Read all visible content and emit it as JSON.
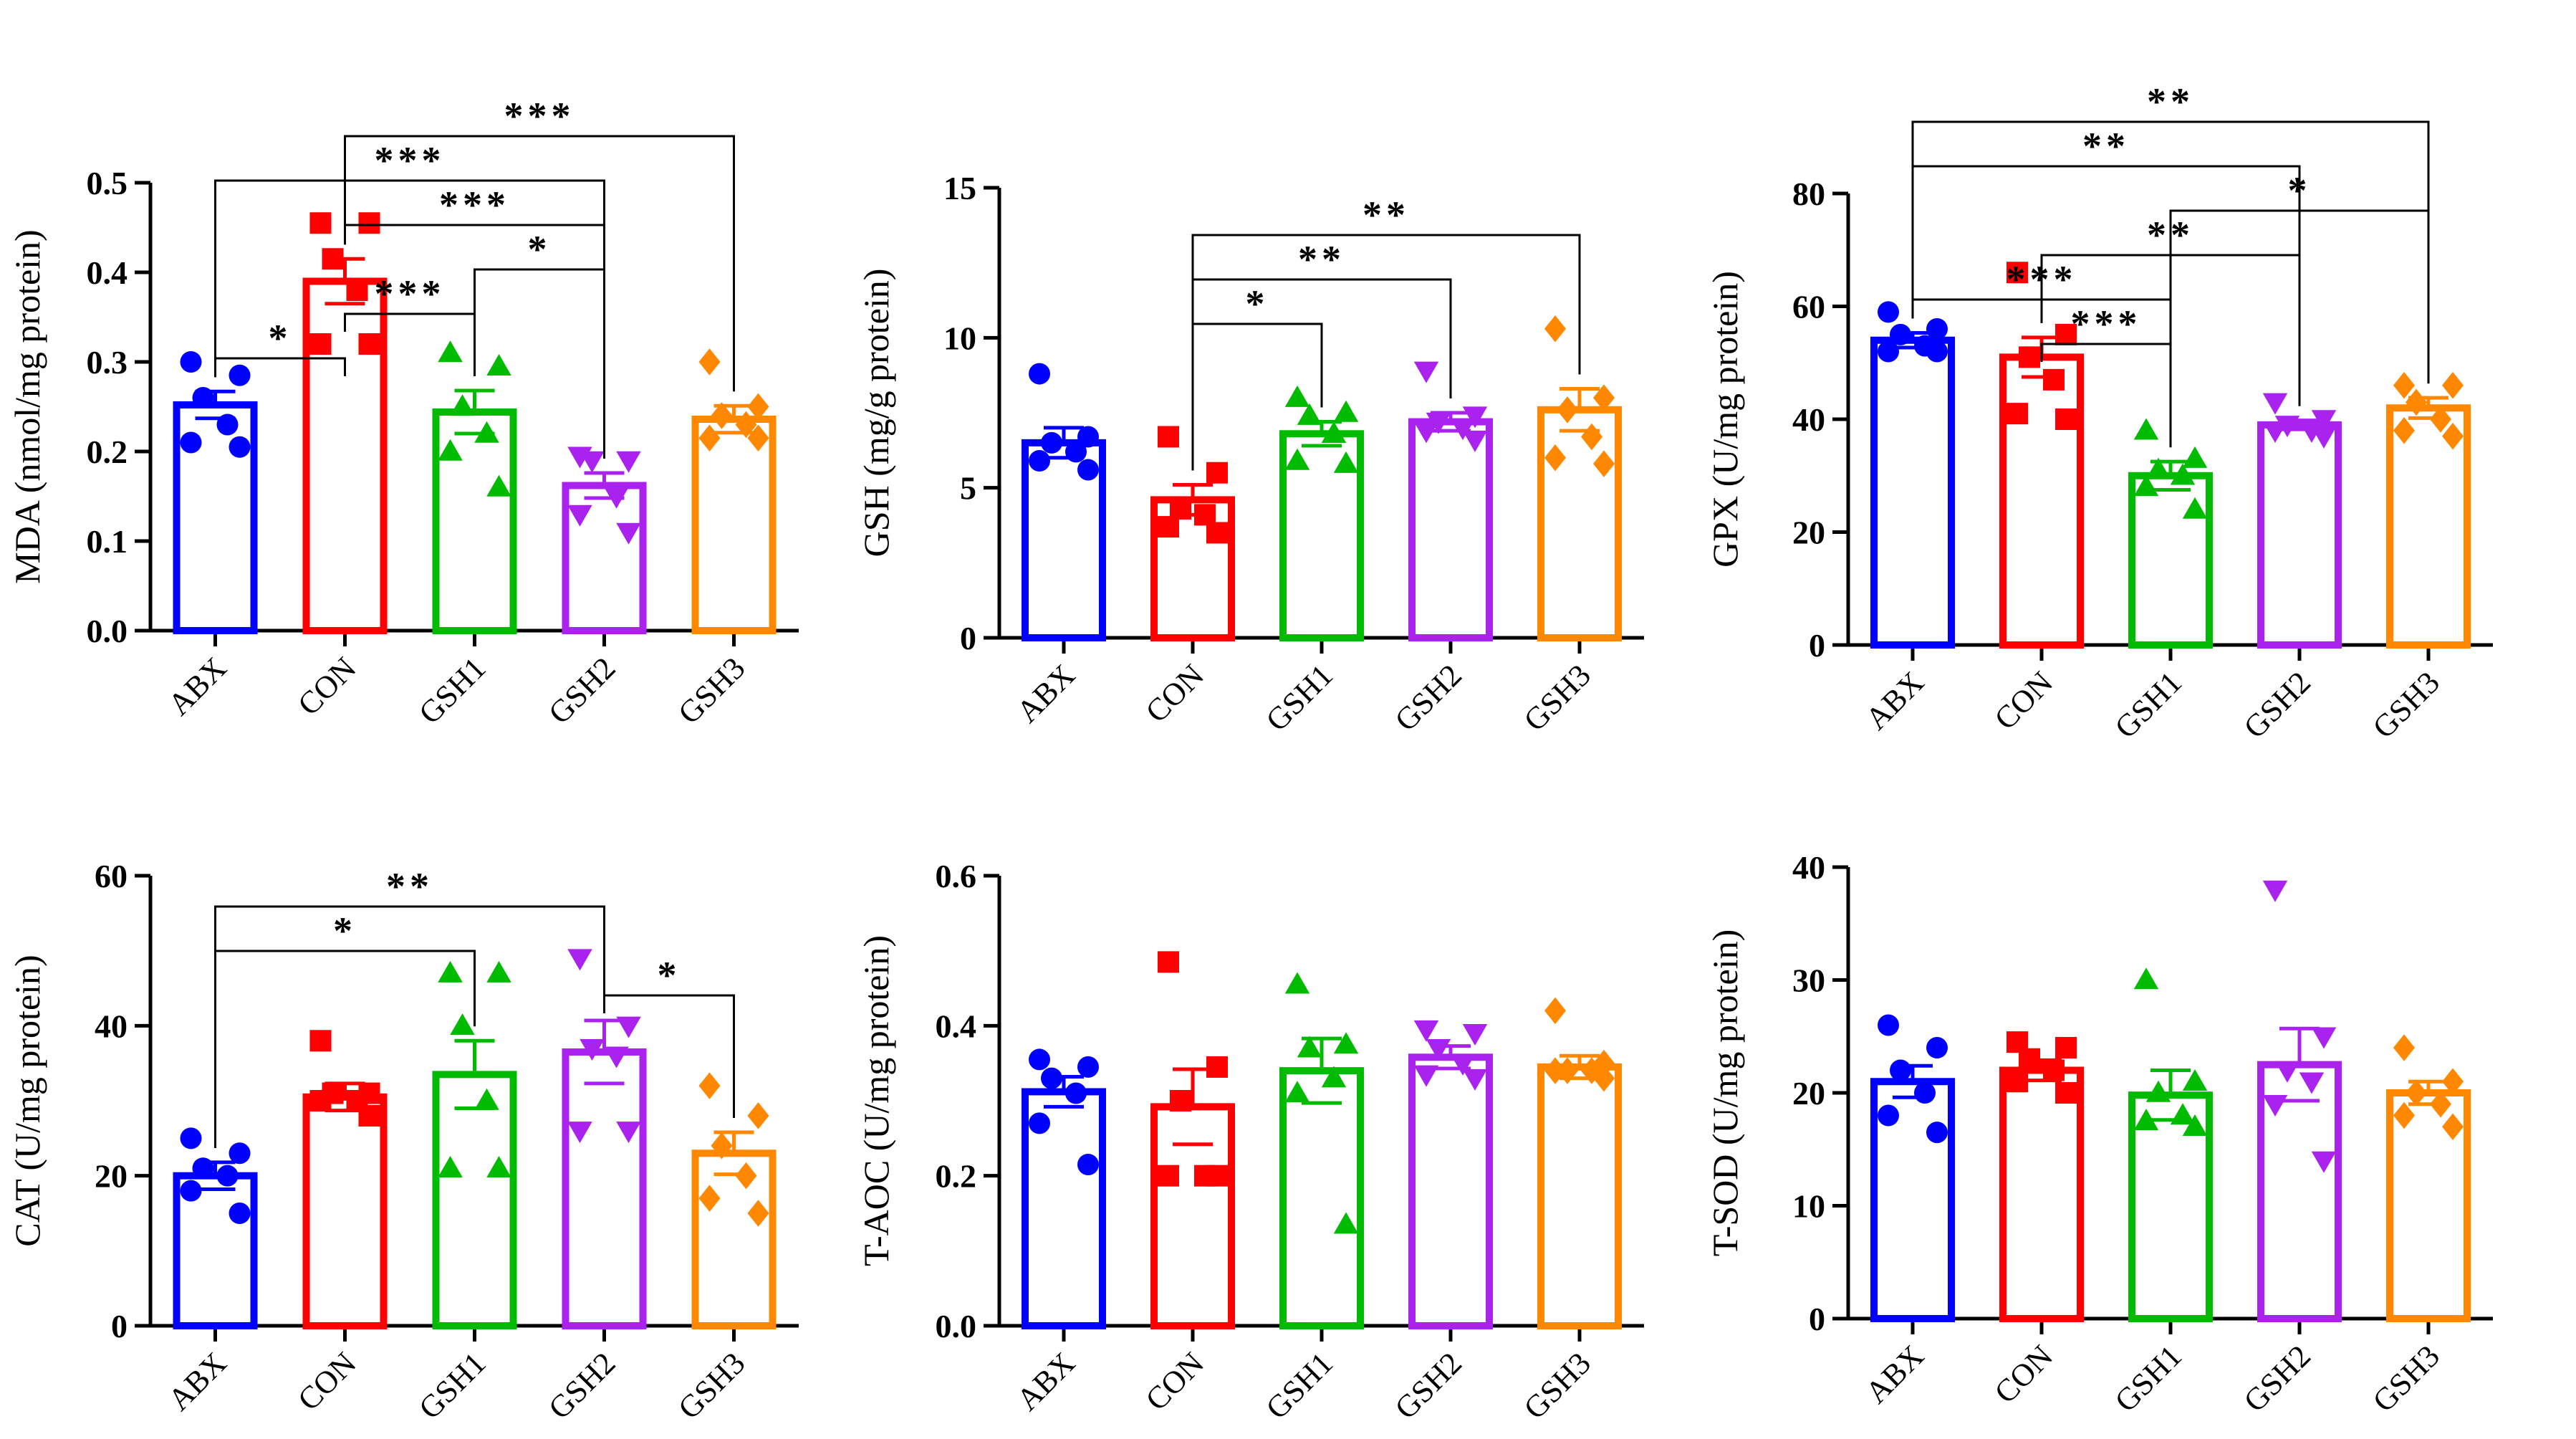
{
  "colors": {
    "ABX": "#0000ff",
    "CON": "#ff0000",
    "GSH1": "#00bb00",
    "GSH2": "#aa22ee",
    "GSH3": "#ff8800"
  },
  "chart_data": [
    {
      "type": "bar",
      "ylabel": "MDA (nmol/mg protein)",
      "ylim": [
        0,
        0.5
      ],
      "yticks": [
        "0.0",
        "0.1",
        "0.2",
        "0.3",
        "0.4",
        "0.5"
      ],
      "categories": [
        "ABX",
        "CON",
        "GSH1",
        "GSH2",
        "GSH3"
      ],
      "markers": [
        "circle",
        "square",
        "triangle",
        "triangle-down",
        "diamond"
      ],
      "means": [
        0.252,
        0.39,
        0.244,
        0.162,
        0.236
      ],
      "sem": [
        0.015,
        0.025,
        0.024,
        0.014,
        0.015
      ],
      "points": [
        [
          0.3,
          0.285,
          0.26,
          0.23,
          0.21,
          0.205
        ],
        [
          0.455,
          0.455,
          0.415,
          0.38,
          0.32,
          0.32
        ],
        [
          0.31,
          0.295,
          0.25,
          0.22,
          0.2,
          0.16
        ],
        [
          0.195,
          0.19,
          0.19,
          0.15,
          0.13,
          0.11
        ],
        [
          0.3,
          0.25,
          0.24,
          0.23,
          0.215,
          0.215
        ]
      ],
      "significance": [
        {
          "from": "ABX",
          "to": "CON",
          "label": "*"
        },
        {
          "from": "ABX",
          "to": "GSH2",
          "label": "***"
        },
        {
          "from": "CON",
          "to": "GSH1",
          "label": "***"
        },
        {
          "from": "CON",
          "to": "GSH2",
          "label": "***"
        },
        {
          "from": "CON",
          "to": "GSH3",
          "label": "***"
        },
        {
          "from": "GSH1",
          "to": "GSH2",
          "label": "*"
        }
      ]
    },
    {
      "type": "bar",
      "ylabel": "GSH (mg/g protein)",
      "ylim": [
        0,
        15
      ],
      "yticks": [
        "0",
        "5",
        "10",
        "15"
      ],
      "categories": [
        "ABX",
        "CON",
        "GSH1",
        "GSH2",
        "GSH3"
      ],
      "markers": [
        "circle",
        "square",
        "triangle",
        "triangle-down",
        "diamond"
      ],
      "means": [
        6.5,
        4.6,
        6.8,
        7.2,
        7.6
      ],
      "sem": [
        0.5,
        0.5,
        0.4,
        0.3,
        0.7
      ],
      "points": [
        [
          8.8,
          6.7,
          6.5,
          6.2,
          5.9,
          5.6
        ],
        [
          6.7,
          5.5,
          4.3,
          4.1,
          3.7,
          3.5
        ],
        [
          8.0,
          7.5,
          7.4,
          6.8,
          5.9,
          5.8
        ],
        [
          8.9,
          7.4,
          7.2,
          7.0,
          6.9,
          6.6
        ],
        [
          10.3,
          8.0,
          7.6,
          6.7,
          6.0,
          5.8
        ]
      ],
      "significance": [
        {
          "from": "CON",
          "to": "GSH1",
          "label": "*"
        },
        {
          "from": "CON",
          "to": "GSH2",
          "label": "**"
        },
        {
          "from": "CON",
          "to": "GSH3",
          "label": "**"
        }
      ]
    },
    {
      "type": "bar",
      "ylabel": "GPX (U/mg protein)",
      "ylim": [
        0,
        80
      ],
      "yticks": [
        "0",
        "20",
        "40",
        "60",
        "80"
      ],
      "categories": [
        "ABX",
        "CON",
        "GSH1",
        "GSH2",
        "GSH3"
      ],
      "markers": [
        "circle",
        "square",
        "triangle",
        "triangle-down",
        "diamond"
      ],
      "means": [
        54,
        51,
        30,
        39,
        42
      ],
      "sem": [
        1.3,
        3.5,
        2.5,
        0.8,
        1.8
      ],
      "points": [
        [
          59,
          56,
          55,
          53,
          52,
          52
        ],
        [
          66,
          55,
          51,
          47,
          41,
          40
        ],
        [
          38,
          33,
          31,
          30,
          28,
          24
        ],
        [
          43,
          40,
          39,
          38,
          38,
          37
        ],
        [
          46,
          46,
          43,
          40,
          38,
          37
        ]
      ],
      "significance": [
        {
          "from": "ABX",
          "to": "GSH1",
          "label": "***"
        },
        {
          "from": "ABX",
          "to": "GSH2",
          "label": "**"
        },
        {
          "from": "ABX",
          "to": "GSH3",
          "label": "**"
        },
        {
          "from": "CON",
          "to": "GSH1",
          "label": "***"
        },
        {
          "from": "CON",
          "to": "GSH2",
          "label": "**"
        },
        {
          "from": "GSH1",
          "to": "GSH3",
          "label": "*"
        }
      ]
    },
    {
      "type": "bar",
      "ylabel": "CAT (U/mg protein)",
      "ylim": [
        0,
        60
      ],
      "yticks": [
        "0",
        "20",
        "40",
        "60"
      ],
      "categories": [
        "ABX",
        "CON",
        "GSH1",
        "GSH2",
        "GSH3"
      ],
      "markers": [
        "circle",
        "square",
        "triangle",
        "triangle-down",
        "diamond"
      ],
      "means": [
        20,
        30.5,
        33.5,
        36.5,
        23
      ],
      "sem": [
        1.8,
        1.8,
        4.5,
        4.2,
        2.8
      ],
      "points": [
        [
          25,
          23,
          21,
          20,
          18,
          15
        ],
        [
          38,
          31,
          31,
          30,
          30,
          28
        ],
        [
          47,
          47,
          40,
          30,
          21,
          21
        ],
        [
          49,
          40,
          37,
          36,
          26,
          26
        ],
        [
          32,
          28,
          24,
          20,
          17,
          15
        ]
      ],
      "significance": [
        {
          "from": "ABX",
          "to": "GSH1",
          "label": "*"
        },
        {
          "from": "ABX",
          "to": "GSH2",
          "label": "**"
        },
        {
          "from": "GSH2",
          "to": "GSH3",
          "label": "*"
        }
      ]
    },
    {
      "type": "bar",
      "ylabel": "T-AOC (U/mg protein)",
      "ylim": [
        0,
        0.6
      ],
      "yticks": [
        "0.0",
        "0.2",
        "0.4",
        "0.6"
      ],
      "categories": [
        "ABX",
        "CON",
        "GSH1",
        "GSH2",
        "GSH3"
      ],
      "markers": [
        "circle",
        "square",
        "triangle",
        "triangle-down",
        "diamond"
      ],
      "means": [
        0.312,
        0.292,
        0.34,
        0.358,
        0.345
      ],
      "sem": [
        0.02,
        0.05,
        0.043,
        0.015,
        0.015
      ],
      "points": [
        [
          0.355,
          0.345,
          0.33,
          0.31,
          0.27,
          0.215
        ],
        [
          0.485,
          0.345,
          0.3,
          0.2,
          0.2,
          0.2
        ],
        [
          0.455,
          0.375,
          0.37,
          0.33,
          0.31,
          0.135
        ],
        [
          0.395,
          0.39,
          0.37,
          0.35,
          0.335,
          0.33
        ],
        [
          0.42,
          0.35,
          0.34,
          0.34,
          0.34,
          0.33
        ]
      ],
      "significance": []
    },
    {
      "type": "bar",
      "ylabel": "T-SOD (U/mg protein)",
      "ylim": [
        0,
        40
      ],
      "yticks": [
        "0",
        "10",
        "20",
        "30",
        "40"
      ],
      "categories": [
        "ABX",
        "CON",
        "GSH1",
        "GSH2",
        "GSH3"
      ],
      "markers": [
        "circle",
        "square",
        "triangle",
        "triangle-down",
        "diamond"
      ],
      "means": [
        21,
        22,
        19.8,
        22.5,
        20
      ],
      "sem": [
        1.4,
        0.9,
        2.2,
        3.2,
        1.0
      ],
      "points": [
        [
          26,
          24,
          22,
          20,
          18,
          16.5
        ],
        [
          24.5,
          24,
          23,
          22,
          21,
          20
        ],
        [
          30,
          21,
          20,
          18,
          17.5,
          17
        ],
        [
          38,
          25,
          22,
          21,
          19,
          14
        ],
        [
          24,
          21,
          20,
          19,
          18,
          17
        ]
      ],
      "significance": []
    }
  ]
}
